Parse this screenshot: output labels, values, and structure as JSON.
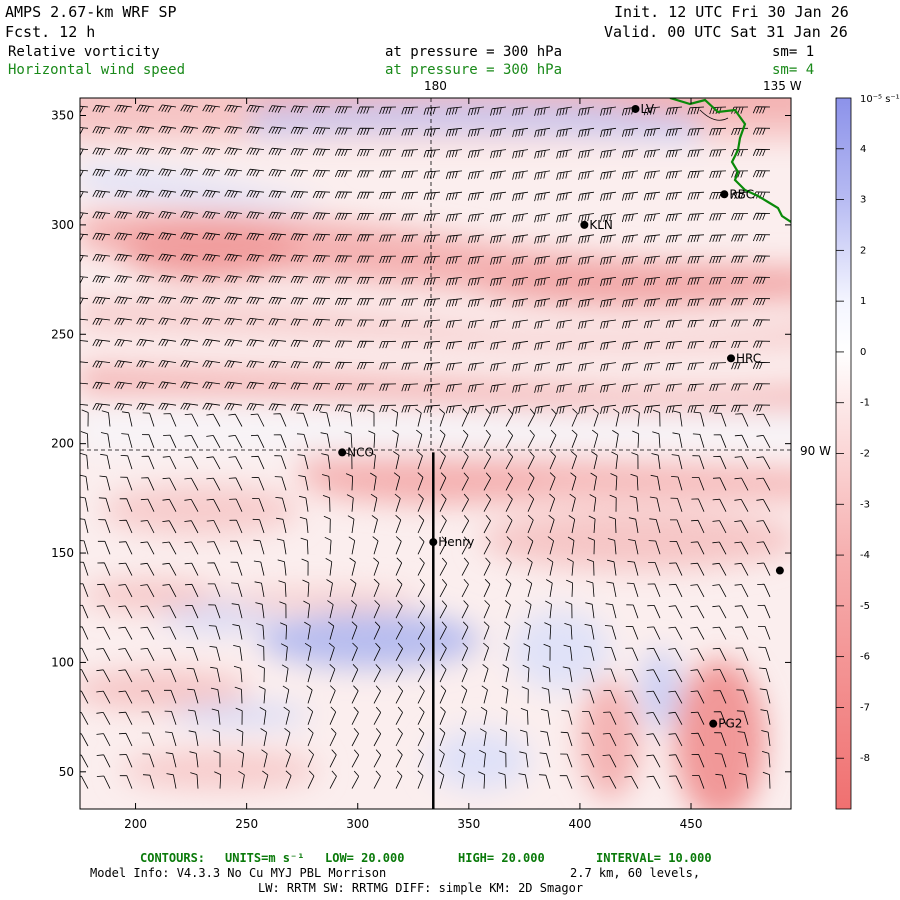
{
  "header": {
    "title": "AMPS 2.67-km WRF SP",
    "forecast": "Fcst.   12 h",
    "init": "Init. 12 UTC Fri 30 Jan 26",
    "valid": "Valid. 00 UTC Sat 31 Jan 26",
    "field1_name": "Relative vorticity",
    "field1_pressure": "at pressure =  300 hPa",
    "field1_sm": "sm= 1",
    "field2_name": "Horizontal wind speed",
    "field2_pressure": "at pressure =  300 hPa",
    "field2_sm": "sm= 4"
  },
  "map": {
    "longitude_labels": {
      "lon_180": "180",
      "lon_135w": "135 W",
      "lon_90w": "90 W"
    },
    "stations": [
      {
        "name": "LV",
        "x": 425,
        "y": 353
      },
      {
        "name": "RBC",
        "x": 465,
        "y": 314
      },
      {
        "name": "KLN",
        "x": 402,
        "y": 300
      },
      {
        "name": "HRC",
        "x": 468,
        "y": 239
      },
      {
        "name": "NCO",
        "x": 293,
        "y": 196
      },
      {
        "name": "Henry",
        "x": 334,
        "y": 155
      },
      {
        "name": "PG2",
        "x": 460,
        "y": 72
      },
      {
        "name": "",
        "x": 490,
        "y": 142
      }
    ],
    "cross_section_x": 334,
    "cross_section_y_top": 196
  },
  "axes": {
    "x_ticks": [
      200,
      250,
      300,
      350,
      400,
      450
    ],
    "y_ticks": [
      50,
      100,
      150,
      200,
      250,
      300,
      350
    ],
    "x_range": [
      175,
      495
    ],
    "y_range": [
      33,
      358
    ]
  },
  "colorbar": {
    "units_label": "10⁻⁵ s⁻¹",
    "ticks": [
      4,
      3,
      2,
      1,
      0,
      -1,
      -2,
      -3,
      -4,
      -5,
      -6,
      -7,
      -8
    ],
    "range": [
      -9,
      5
    ],
    "colors": {
      "positive": "#6c74e0",
      "negative": "#f07272",
      "zero": "#ffffff"
    }
  },
  "footer": {
    "contours_label": "CONTOURS:",
    "units_label": "UNITS=m s⁻¹",
    "low": "LOW=  20.000",
    "high": "HIGH=  20.000",
    "interval": "INTERVAL=   10.000",
    "model_info": "Model Info: V4.3.3    No Cu    MYJ PBL  Morrison",
    "resolution": "2.7 km,  60 levels,",
    "physics": "LW: RRTM SW: RRTMG   DIFF: simple KM: 2D Smagor"
  },
  "colors": {
    "coast": "#0a8a0a",
    "accent_green": "#1a8a1a"
  }
}
